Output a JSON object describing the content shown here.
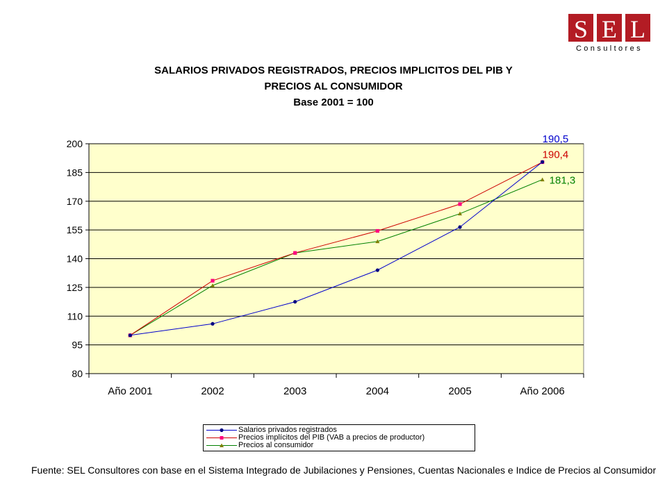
{
  "logo": {
    "letters": [
      "S",
      "E",
      "L"
    ],
    "subtitle": "Consultores",
    "color": "#b31c24"
  },
  "header": {
    "title_line1": "SALARIOS PRIVADOS REGISTRADOS, PRECIOS IMPLICITOS DEL PIB Y",
    "title_line2": "PRECIOS AL CONSUMIDOR",
    "subtitle": "Base 2001 = 100"
  },
  "chart_data": {
    "type": "line",
    "categories": [
      "Año 2001",
      "2002",
      "2003",
      "2004",
      "2005",
      "Año 2006"
    ],
    "yticks": [
      80,
      95,
      110,
      125,
      140,
      155,
      170,
      185,
      200
    ],
    "ylim": [
      80,
      200
    ],
    "grid": true,
    "plot_background": "#ffffcc",
    "legend_position": "bottom",
    "series": [
      {
        "name": "Salarios privados registrados",
        "values": [
          100,
          106,
          117.5,
          134,
          156.5,
          190.5
        ],
        "color": "#0000cc",
        "marker": "circle",
        "end_label": "190,5"
      },
      {
        "name": "Precios implícitos del PIB (VAB a precios de productor)",
        "values": [
          100,
          128.5,
          143,
          154.5,
          168.5,
          190.4
        ],
        "color": "#cc0000",
        "marker": "square",
        "end_label": "190,4"
      },
      {
        "name": "Precios al consumidor",
        "values": [
          100,
          126,
          143,
          149,
          163.5,
          181.3
        ],
        "color": "#008000",
        "marker": "triangle",
        "end_label": "181,3"
      }
    ]
  },
  "footer": {
    "source": "Fuente: SEL Consultores con base en el Sistema Integrado de Jubilaciones y Pensiones, Cuentas Nacionales e Indice de Precios al Consumidor"
  }
}
